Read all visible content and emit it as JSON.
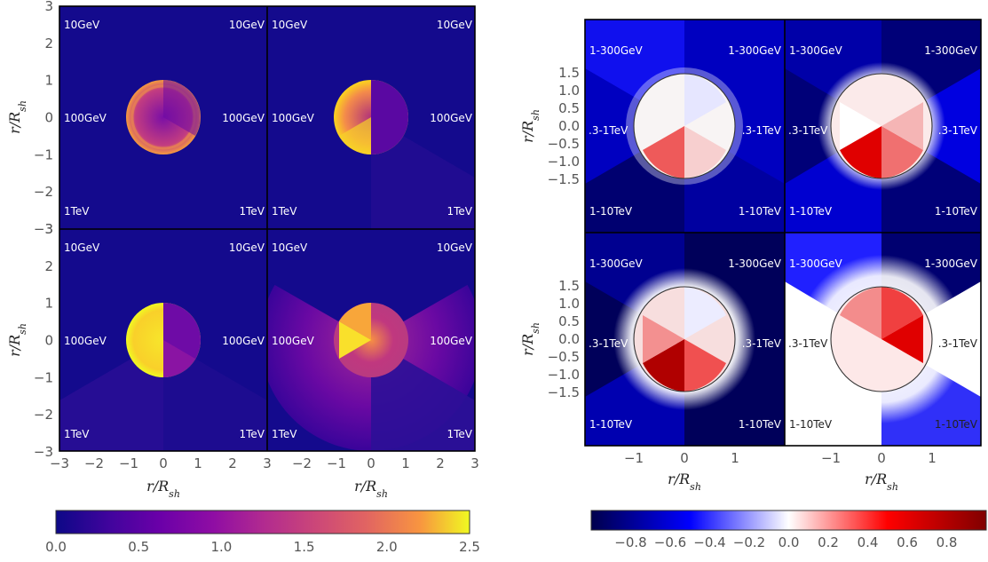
{
  "chart_data": [
    {
      "type": "heatmap",
      "panel_group": "left",
      "colormap": "plasma",
      "colors": {
        "low": "#0d0887",
        "mid": "#cc4778",
        "high": "#f0f921"
      },
      "xlim": [
        -3,
        3
      ],
      "ylim": [
        -3,
        3
      ],
      "xlabel": "r/R_sh",
      "ylabel": "r/R_sh",
      "x_ticks": [
        "−3",
        "−2",
        "−1",
        "0",
        "1",
        "2",
        "3"
      ],
      "x_ticks_right_panel": [
        "−2",
        "−1",
        "0",
        "1",
        "2",
        "3"
      ],
      "y_ticks": [
        "3",
        "2",
        "1",
        "0",
        "−1",
        "−2",
        "−3"
      ],
      "panels": [
        {
          "position": "top-left",
          "labels": {
            "top_left": "10GeV",
            "top_right": "10GeV",
            "mid_left": "100GeV",
            "mid_right": "100GeV",
            "bottom_left": "1TeV",
            "bottom_right": "1TeV"
          }
        },
        {
          "position": "top-right",
          "labels": {
            "top_left": "10GeV",
            "top_right": "10GeV",
            "mid_left": "100GeV",
            "mid_right": "100GeV",
            "bottom_left": "1TeV",
            "bottom_right": "1TeV"
          }
        },
        {
          "position": "bottom-left",
          "labels": {
            "top_left": "10GeV",
            "top_right": "10GeV",
            "mid_left": "100GeV",
            "mid_right": "100GeV",
            "bottom_left": "1TeV",
            "bottom_right": "1TeV"
          }
        },
        {
          "position": "bottom-right",
          "labels": {
            "top_left": "10GeV",
            "top_right": "10GeV",
            "mid_left": "100GeV",
            "mid_right": "100GeV",
            "bottom_left": "1TeV",
            "bottom_right": "1TeV"
          }
        }
      ],
      "colorbar": {
        "range": [
          0,
          2.5
        ],
        "ticks": [
          "0.0",
          "0.5",
          "1.0",
          "1.5",
          "2.0",
          "2.5"
        ]
      }
    },
    {
      "type": "heatmap",
      "panel_group": "right",
      "colormap": "seismic",
      "colors": {
        "low": "#00004c",
        "mid": "#ffffff",
        "high": "#800000"
      },
      "xlim": [
        -2,
        2
      ],
      "ylim": [
        -2,
        2
      ],
      "xlabel": "r/R_sh",
      "ylabel": "r/R_sh",
      "x_ticks": [
        "−1",
        "0",
        "1"
      ],
      "y_ticks": [
        "1.5",
        "1.0",
        "0.5",
        "0.0",
        "−0.5",
        "−1.0",
        "−1.5"
      ],
      "panels": [
        {
          "position": "top-left",
          "labels": {
            "top_left": "1-300GeV",
            "top_right": "1-300GeV",
            "mid_left": ".3-1TeV",
            "mid_right": ".3-1TeV",
            "bottom_left": "1-10TeV",
            "bottom_right": "1-10TeV"
          }
        },
        {
          "position": "top-right",
          "labels": {
            "top_left": "1-300GeV",
            "top_right": "1-300GeV",
            "mid_left": ".3-1TeV",
            "mid_right": ".3-1TeV",
            "bottom_left": "1-10TeV",
            "bottom_right": "1-10TeV"
          }
        },
        {
          "position": "bottom-left",
          "labels": {
            "top_left": "1-300GeV",
            "top_right": "1-300GeV",
            "mid_left": ".3-1TeV",
            "mid_right": ".3-1TeV",
            "bottom_left": "1-10TeV",
            "bottom_right": "1-10TeV"
          }
        },
        {
          "position": "bottom-right",
          "labels": {
            "top_left": "1-300GeV",
            "top_right": "1-300GeV",
            "mid_left": ".3-1TeV",
            "mid_right": ".3-1TeV",
            "bottom_left": "1-10TeV",
            "bottom_right": "1-10TeV"
          }
        }
      ],
      "colorbar": {
        "range": [
          -1,
          1
        ],
        "ticks": [
          "−0.8",
          "−0.6",
          "−0.4",
          "−0.2",
          "0.0",
          "0.2",
          "0.4",
          "0.6",
          "0.8"
        ]
      }
    }
  ]
}
